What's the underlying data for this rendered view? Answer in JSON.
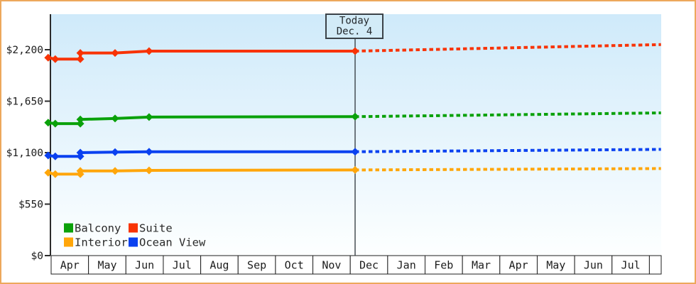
{
  "chart_data": {
    "type": "line",
    "description_of_axes": "x: months Apr through Jul of following year; y: price in USD",
    "ylim": [
      0,
      2200
    ],
    "grid": "off",
    "y_ticks": [
      {
        "value": 0,
        "label": "$0"
      },
      {
        "value": 550,
        "label": "$550"
      },
      {
        "value": 1100,
        "label": "$1,100"
      },
      {
        "value": 1650,
        "label": "$1,650"
      },
      {
        "value": 2200,
        "label": "$2,200"
      }
    ],
    "x_months": [
      "Apr",
      "May",
      "Jun",
      "Jul",
      "Aug",
      "Sep",
      "Oct",
      "Nov",
      "Dec",
      "Jan",
      "Feb",
      "Mar",
      "Apr",
      "May",
      "Jun",
      "Jul"
    ],
    "today": {
      "line1": "Today",
      "line2": "Dec. 4",
      "month_offset": 8.13
    },
    "series": [
      {
        "name": "Suite",
        "color": "#f83305",
        "style_after_today": "dotted",
        "points": [
          [
            -0.08,
            2115
          ],
          [
            0.11,
            2100
          ],
          [
            0.78,
            2100
          ],
          [
            0.78,
            2165
          ],
          [
            1.71,
            2165
          ],
          [
            2.62,
            2185
          ],
          [
            8.13,
            2185
          ]
        ],
        "forecast_point": [
          16.31,
          2255
        ]
      },
      {
        "name": "Balcony",
        "color": "#0aa10a",
        "style_after_today": "dotted",
        "points": [
          [
            -0.08,
            1420
          ],
          [
            0.11,
            1410
          ],
          [
            0.78,
            1410
          ],
          [
            0.78,
            1455
          ],
          [
            1.71,
            1465
          ],
          [
            2.62,
            1480
          ],
          [
            8.13,
            1485
          ]
        ],
        "forecast_point": [
          16.31,
          1525
        ]
      },
      {
        "name": "Ocean View",
        "color": "#0a41f0",
        "style_after_today": "dotted",
        "points": [
          [
            -0.08,
            1070
          ],
          [
            0.11,
            1060
          ],
          [
            0.78,
            1060
          ],
          [
            0.78,
            1100
          ],
          [
            1.71,
            1105
          ],
          [
            2.62,
            1110
          ],
          [
            8.13,
            1110
          ]
        ],
        "forecast_point": [
          16.31,
          1135
        ]
      },
      {
        "name": "Interior",
        "color": "#ffa60a",
        "style_after_today": "dotted",
        "points": [
          [
            -0.08,
            885
          ],
          [
            0.11,
            870
          ],
          [
            0.78,
            870
          ],
          [
            0.78,
            905
          ],
          [
            1.71,
            905
          ],
          [
            2.62,
            910
          ],
          [
            8.13,
            915
          ]
        ],
        "forecast_point": [
          16.31,
          930
        ]
      }
    ],
    "legend": [
      {
        "label": "Balcony",
        "color": "#0aa10a"
      },
      {
        "label": "Suite",
        "color": "#f83305"
      },
      {
        "label": "Interior",
        "color": "#ffa60a"
      },
      {
        "label": "Ocean View",
        "color": "#0a41f0"
      }
    ],
    "legend_position": "inside-bottom-left",
    "colors": {
      "plot_bg_top": "#cfeafa",
      "plot_bg_bottom": "#fdffff",
      "axis": "#2b2b2b",
      "frame_border": "#eda85c",
      "today_line": "#3b4248",
      "today_box_fill": "#d2ebf7"
    }
  }
}
